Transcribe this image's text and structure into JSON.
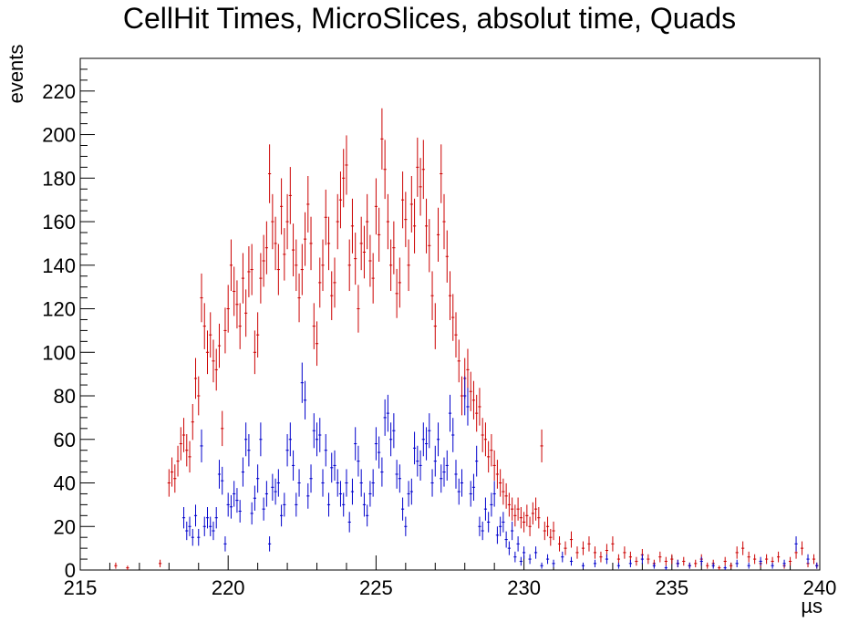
{
  "chart_data": {
    "type": "scatter",
    "title": "CellHit Times, MicroSlices, absolut time, Quads",
    "xlabel": "µs",
    "ylabel": "events",
    "xlim": [
      215,
      240
    ],
    "ylim": [
      0,
      235
    ],
    "x_ticks": [
      215,
      220,
      225,
      230,
      235,
      240
    ],
    "y_ticks": [
      0,
      20,
      40,
      60,
      80,
      100,
      120,
      140,
      160,
      180,
      200,
      220
    ],
    "grid": false,
    "legend": "none",
    "series": [
      {
        "color": "#cc0000",
        "points": [
          [
            216.2,
            2
          ],
          [
            216.6,
            1
          ],
          [
            217.7,
            3
          ],
          [
            218.0,
            40
          ],
          [
            218.1,
            45
          ],
          [
            218.2,
            42
          ],
          [
            218.3,
            50
          ],
          [
            218.4,
            58
          ],
          [
            218.5,
            62
          ],
          [
            218.6,
            55
          ],
          [
            218.7,
            52
          ],
          [
            218.8,
            68
          ],
          [
            218.9,
            88
          ],
          [
            219.0,
            80
          ],
          [
            219.1,
            125
          ],
          [
            219.2,
            112
          ],
          [
            219.3,
            100
          ],
          [
            219.4,
            108
          ],
          [
            219.5,
            96
          ],
          [
            219.6,
            92
          ],
          [
            219.7,
            103
          ],
          [
            219.8,
            65
          ],
          [
            219.9,
            110
          ],
          [
            220.0,
            120
          ],
          [
            220.1,
            140
          ],
          [
            220.2,
            128
          ],
          [
            220.3,
            122
          ],
          [
            220.4,
            112
          ],
          [
            220.5,
            134
          ],
          [
            220.6,
            118
          ],
          [
            220.7,
            137
          ],
          [
            220.8,
            138
          ],
          [
            220.9,
            100
          ],
          [
            221.0,
            108
          ],
          [
            221.1,
            134
          ],
          [
            221.2,
            142
          ],
          [
            221.3,
            148
          ],
          [
            221.4,
            182
          ],
          [
            221.5,
            160
          ],
          [
            221.6,
            150
          ],
          [
            221.7,
            138
          ],
          [
            221.8,
            167
          ],
          [
            221.9,
            145
          ],
          [
            222.0,
            160
          ],
          [
            222.1,
            172
          ],
          [
            222.2,
            147
          ],
          [
            222.3,
            140
          ],
          [
            222.4,
            125
          ],
          [
            222.5,
            138
          ],
          [
            222.6,
            152
          ],
          [
            222.7,
            168
          ],
          [
            222.8,
            150
          ],
          [
            222.9,
            112
          ],
          [
            223.0,
            104
          ],
          [
            223.1,
            132
          ],
          [
            223.2,
            140
          ],
          [
            223.3,
            162
          ],
          [
            223.4,
            150
          ],
          [
            223.5,
            126
          ],
          [
            223.6,
            132
          ],
          [
            223.7,
            160
          ],
          [
            223.8,
            170
          ],
          [
            223.9,
            180
          ],
          [
            224.0,
            186
          ],
          [
            224.1,
            140
          ],
          [
            224.2,
            158
          ],
          [
            224.3,
            143
          ],
          [
            224.4,
            120
          ],
          [
            224.5,
            150
          ],
          [
            224.6,
            146
          ],
          [
            224.7,
            160
          ],
          [
            224.8,
            142
          ],
          [
            224.9,
            134
          ],
          [
            225.0,
            167
          ],
          [
            225.1,
            154
          ],
          [
            225.2,
            198
          ],
          [
            225.3,
            184
          ],
          [
            225.4,
            160
          ],
          [
            225.5,
            140
          ],
          [
            225.6,
            148
          ],
          [
            225.7,
            127
          ],
          [
            225.8,
            132
          ],
          [
            225.9,
            170
          ],
          [
            226.0,
            161
          ],
          [
            226.1,
            140
          ],
          [
            226.2,
            168
          ],
          [
            226.3,
            158
          ],
          [
            226.4,
            185
          ],
          [
            226.5,
            176
          ],
          [
            226.6,
            184
          ],
          [
            226.7,
            158
          ],
          [
            226.8,
            149
          ],
          [
            226.9,
            126
          ],
          [
            227.0,
            112
          ],
          [
            227.1,
            154
          ],
          [
            227.2,
            182
          ],
          [
            227.3,
            160
          ],
          [
            227.4,
            144
          ],
          [
            227.5,
            126
          ],
          [
            227.6,
            116
          ],
          [
            227.7,
            108
          ],
          [
            227.8,
            96
          ],
          [
            227.9,
            80
          ],
          [
            228.0,
            88
          ],
          [
            228.1,
            92
          ],
          [
            228.2,
            82
          ],
          [
            228.3,
            78
          ],
          [
            228.4,
            72
          ],
          [
            228.5,
            75
          ],
          [
            228.6,
            62
          ],
          [
            228.7,
            60
          ],
          [
            228.8,
            52
          ],
          [
            228.9,
            55
          ],
          [
            229.0,
            48
          ],
          [
            229.1,
            44
          ],
          [
            229.2,
            40
          ],
          [
            229.3,
            36
          ],
          [
            229.4,
            34
          ],
          [
            229.5,
            30
          ],
          [
            229.6,
            28
          ],
          [
            229.7,
            25
          ],
          [
            229.8,
            28
          ],
          [
            229.9,
            24
          ],
          [
            230.0,
            22
          ],
          [
            230.1,
            25
          ],
          [
            230.2,
            20
          ],
          [
            230.3,
            26
          ],
          [
            230.4,
            28
          ],
          [
            230.5,
            24
          ],
          [
            230.6,
            57
          ],
          [
            230.7,
            18
          ],
          [
            230.8,
            20
          ],
          [
            230.9,
            15
          ],
          [
            231.0,
            18
          ],
          [
            231.2,
            12
          ],
          [
            231.4,
            10
          ],
          [
            231.6,
            14
          ],
          [
            231.8,
            8
          ],
          [
            232.0,
            10
          ],
          [
            232.2,
            12
          ],
          [
            232.4,
            8
          ],
          [
            232.6,
            6
          ],
          [
            232.8,
            9
          ],
          [
            233.0,
            12
          ],
          [
            233.2,
            5
          ],
          [
            233.4,
            8
          ],
          [
            233.6,
            6
          ],
          [
            233.8,
            4
          ],
          [
            234.0,
            7
          ],
          [
            234.2,
            5
          ],
          [
            234.4,
            3
          ],
          [
            234.6,
            6
          ],
          [
            234.8,
            4
          ],
          [
            235.0,
            5
          ],
          [
            235.2,
            3
          ],
          [
            235.4,
            4
          ],
          [
            235.6,
            2
          ],
          [
            235.8,
            3
          ],
          [
            236.0,
            5
          ],
          [
            236.2,
            2
          ],
          [
            236.4,
            3
          ],
          [
            236.6,
            1
          ],
          [
            236.8,
            4
          ],
          [
            237.0,
            2
          ],
          [
            237.2,
            8
          ],
          [
            237.4,
            10
          ],
          [
            237.6,
            6
          ],
          [
            237.8,
            5
          ],
          [
            238.0,
            3
          ],
          [
            238.2,
            5
          ],
          [
            238.4,
            4
          ],
          [
            238.6,
            6
          ],
          [
            238.8,
            2
          ],
          [
            239.0,
            4
          ],
          [
            239.2,
            8
          ],
          [
            239.4,
            10
          ],
          [
            239.6,
            3
          ],
          [
            239.8,
            5
          ],
          [
            239.9,
            2
          ]
        ]
      },
      {
        "color": "#0000cc",
        "points": [
          [
            218.5,
            24
          ],
          [
            218.6,
            18
          ],
          [
            218.7,
            20
          ],
          [
            218.8,
            15
          ],
          [
            218.9,
            25
          ],
          [
            219.0,
            15
          ],
          [
            219.1,
            57
          ],
          [
            219.2,
            20
          ],
          [
            219.3,
            24
          ],
          [
            219.4,
            20
          ],
          [
            219.5,
            18
          ],
          [
            219.6,
            24
          ],
          [
            219.7,
            44
          ],
          [
            219.8,
            41
          ],
          [
            219.9,
            12
          ],
          [
            220.0,
            30
          ],
          [
            220.1,
            29
          ],
          [
            220.2,
            35
          ],
          [
            220.3,
            32
          ],
          [
            220.4,
            27
          ],
          [
            220.5,
            45
          ],
          [
            220.6,
            60
          ],
          [
            220.7,
            55
          ],
          [
            220.8,
            26
          ],
          [
            220.9,
            33
          ],
          [
            221.0,
            42
          ],
          [
            221.1,
            60
          ],
          [
            221.2,
            28
          ],
          [
            221.3,
            35
          ],
          [
            221.4,
            12
          ],
          [
            221.5,
            38
          ],
          [
            221.6,
            36
          ],
          [
            221.7,
            40
          ],
          [
            221.8,
            25
          ],
          [
            221.9,
            30
          ],
          [
            222.0,
            55
          ],
          [
            222.1,
            60
          ],
          [
            222.2,
            48
          ],
          [
            222.3,
            30
          ],
          [
            222.4,
            40
          ],
          [
            222.5,
            86
          ],
          [
            222.6,
            78
          ],
          [
            222.7,
            34
          ],
          [
            222.8,
            42
          ],
          [
            222.9,
            64
          ],
          [
            223.0,
            60
          ],
          [
            223.1,
            62
          ],
          [
            223.2,
            40
          ],
          [
            223.3,
            55
          ],
          [
            223.4,
            30
          ],
          [
            223.5,
            47
          ],
          [
            223.6,
            48
          ],
          [
            223.7,
            40
          ],
          [
            223.8,
            35
          ],
          [
            223.9,
            30
          ],
          [
            224.0,
            40
          ],
          [
            224.1,
            22
          ],
          [
            224.2,
            36
          ],
          [
            224.3,
            58
          ],
          [
            224.4,
            50
          ],
          [
            224.5,
            40
          ],
          [
            224.6,
            30
          ],
          [
            224.7,
            25
          ],
          [
            224.8,
            35
          ],
          [
            224.9,
            40
          ],
          [
            225.0,
            58
          ],
          [
            225.1,
            54
          ],
          [
            225.2,
            45
          ],
          [
            225.3,
            70
          ],
          [
            225.4,
            72
          ],
          [
            225.5,
            60
          ],
          [
            225.6,
            64
          ],
          [
            225.7,
            44
          ],
          [
            225.8,
            42
          ],
          [
            225.9,
            28
          ],
          [
            226.0,
            20
          ],
          [
            226.1,
            35
          ],
          [
            226.2,
            36
          ],
          [
            226.3,
            56
          ],
          [
            226.4,
            50
          ],
          [
            226.5,
            48
          ],
          [
            226.6,
            60
          ],
          [
            226.7,
            58
          ],
          [
            226.8,
            64
          ],
          [
            226.9,
            40
          ],
          [
            227.0,
            50
          ],
          [
            227.1,
            60
          ],
          [
            227.2,
            42
          ],
          [
            227.3,
            45
          ],
          [
            227.4,
            48
          ],
          [
            227.5,
            72
          ],
          [
            227.6,
            62
          ],
          [
            227.7,
            44
          ],
          [
            227.8,
            36
          ],
          [
            227.9,
            40
          ],
          [
            228.0,
            80
          ],
          [
            228.1,
            75
          ],
          [
            228.2,
            35
          ],
          [
            228.3,
            38
          ],
          [
            228.4,
            50
          ],
          [
            228.5,
            20
          ],
          [
            228.6,
            18
          ],
          [
            228.7,
            28
          ],
          [
            228.8,
            22
          ],
          [
            228.9,
            30
          ],
          [
            229.0,
            35
          ],
          [
            229.1,
            16
          ],
          [
            229.2,
            20
          ],
          [
            229.3,
            22
          ],
          [
            229.4,
            14
          ],
          [
            229.5,
            10
          ],
          [
            229.6,
            18
          ],
          [
            229.7,
            6
          ],
          [
            229.8,
            12
          ],
          [
            229.9,
            4
          ],
          [
            230.0,
            8
          ],
          [
            230.2,
            5
          ],
          [
            230.4,
            8
          ],
          [
            230.6,
            2
          ],
          [
            230.8,
            5
          ],
          [
            231.0,
            3
          ],
          [
            231.3,
            6
          ],
          [
            231.6,
            4
          ],
          [
            232.0,
            2
          ],
          [
            232.4,
            3
          ],
          [
            232.8,
            5
          ],
          [
            233.2,
            2
          ],
          [
            233.6,
            3
          ],
          [
            234.0,
            5
          ],
          [
            234.4,
            2
          ],
          [
            234.8,
            1
          ],
          [
            235.2,
            3
          ],
          [
            235.6,
            2
          ],
          [
            236.0,
            4
          ],
          [
            236.4,
            2
          ],
          [
            236.8,
            1
          ],
          [
            237.2,
            3
          ],
          [
            237.6,
            2
          ],
          [
            238.0,
            4
          ],
          [
            238.4,
            2
          ],
          [
            238.8,
            3
          ],
          [
            239.2,
            12
          ],
          [
            239.6,
            5
          ],
          [
            239.9,
            2
          ]
        ]
      }
    ]
  }
}
